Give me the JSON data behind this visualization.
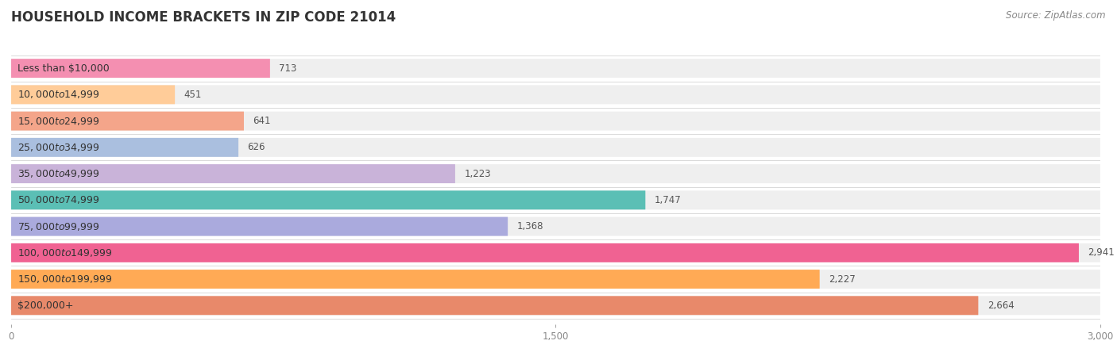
{
  "title": "HOUSEHOLD INCOME BRACKETS IN ZIP CODE 21014",
  "source": "Source: ZipAtlas.com",
  "categories": [
    "Less than $10,000",
    "$10,000 to $14,999",
    "$15,000 to $24,999",
    "$25,000 to $34,999",
    "$35,000 to $49,999",
    "$50,000 to $74,999",
    "$75,000 to $99,999",
    "$100,000 to $149,999",
    "$150,000 to $199,999",
    "$200,000+"
  ],
  "values": [
    713,
    451,
    641,
    626,
    1223,
    1747,
    1368,
    2941,
    2227,
    2664
  ],
  "bar_colors": [
    "#F48FB1",
    "#FFCC99",
    "#F4A58A",
    "#AABFDF",
    "#C9B3D9",
    "#5BBFB5",
    "#AAAADD",
    "#F06292",
    "#FFAA55",
    "#E8896A"
  ],
  "bar_bg_color": "#EFEFEF",
  "xlim": [
    0,
    3000
  ],
  "xticks": [
    0,
    1500,
    3000
  ],
  "background_color": "#FFFFFF",
  "title_fontsize": 12,
  "label_fontsize": 9,
  "value_fontsize": 8.5,
  "source_fontsize": 8.5,
  "bar_height": 0.72,
  "bar_gap": 0.28
}
